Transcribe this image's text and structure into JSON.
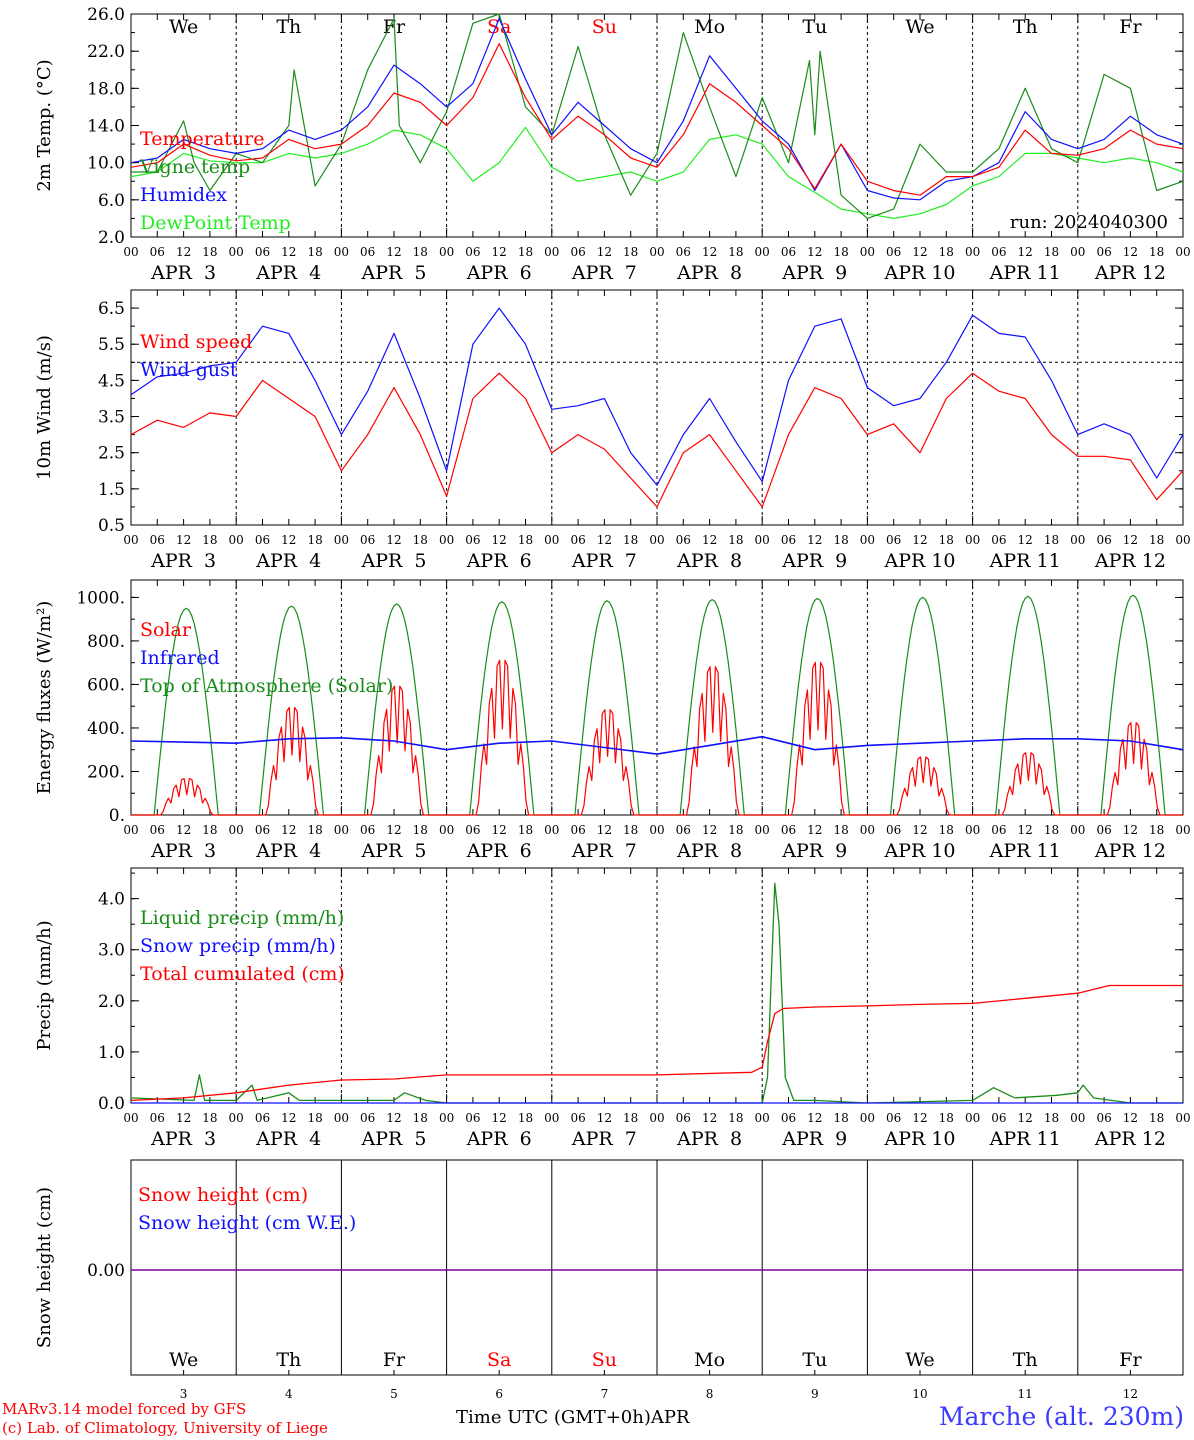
{
  "colors": {
    "red": "#ff0000",
    "green": "#1a8c1a",
    "blue": "#1010ff",
    "lightgreen": "#22ee22",
    "purple": "#8000a0",
    "black": "#000000"
  },
  "days_top": [
    "We",
    "Th",
    "Fr",
    "Sa",
    "Su",
    "Mo",
    "Tu",
    "We",
    "Th",
    "Fr"
  ],
  "weekend_days": [
    "Sa",
    "Su"
  ],
  "day_numbers": [
    "3",
    "4",
    "5",
    "6",
    "7",
    "8",
    "9",
    "10",
    "11",
    "12"
  ],
  "date_labels": [
    "APR  3",
    "APR  4",
    "APR  5",
    "APR  6",
    "APR  7",
    "APR  8",
    "APR  9",
    "APR 10",
    "APR 11",
    "APR 12"
  ],
  "hour_ticks": [
    "00",
    "06",
    "12",
    "18"
  ],
  "end_tick": "00",
  "run_label": "run: 2024040300",
  "footer": {
    "credit1": "MARv3.14 model forced by GFS",
    "credit2": "(c) Lab. of Climatology, University of Liege",
    "xunit": "Time UTC (GMT+0h)",
    "month": "APR",
    "station": "Marche (alt. 230m)"
  },
  "chart_data": [
    {
      "type": "line",
      "ylabel": "2m Temp. (°C)",
      "ylim": [
        2,
        26
      ],
      "yticks": [
        "26.0",
        "22.0",
        "18.0",
        "14.0",
        "10.0",
        "6.0",
        "2.0"
      ],
      "ytick_values": [
        26,
        22,
        18,
        14,
        10,
        6,
        2
      ],
      "x_unit": "days from APR 3 00 UTC",
      "series": [
        {
          "name": "Temperature",
          "color": "red",
          "x": [
            0,
            0.25,
            0.5,
            0.75,
            1,
            1.25,
            1.5,
            1.75,
            2,
            2.25,
            2.5,
            2.75,
            3,
            3.25,
            3.5,
            3.75,
            4,
            4.25,
            4.5,
            4.75,
            5,
            5.25,
            5.5,
            5.75,
            6,
            6.25,
            6.5,
            6.75,
            7,
            7.25,
            7.5,
            7.75,
            8,
            8.25,
            8.5,
            8.75,
            9,
            9.25,
            9.5,
            9.75,
            10
          ],
          "y": [
            9.5,
            10.0,
            12.0,
            10.8,
            10.2,
            10.5,
            12.5,
            11.5,
            12.0,
            14.0,
            17.5,
            16.5,
            14.0,
            17.0,
            22.8,
            17.0,
            12.5,
            15.0,
            13.0,
            10.5,
            9.5,
            13.0,
            18.5,
            16.5,
            14.0,
            11.5,
            7.2,
            12.0,
            8.0,
            7.0,
            6.5,
            8.5,
            8.5,
            9.5,
            13.5,
            11.0,
            10.8,
            11.5,
            13.5,
            12.0,
            11.5
          ]
        },
        {
          "name": "Vigne temp",
          "color": "green",
          "x": [
            0,
            0.25,
            0.5,
            0.6,
            0.75,
            1,
            1.25,
            1.5,
            1.55,
            1.75,
            2,
            2.25,
            2.5,
            2.55,
            2.75,
            3,
            3.25,
            3.5,
            3.75,
            4,
            4.25,
            4.5,
            4.75,
            5,
            5.25,
            5.5,
            5.75,
            6,
            6.25,
            6.45,
            6.5,
            6.55,
            6.75,
            7,
            7.25,
            7.5,
            7.75,
            8,
            8.25,
            8.5,
            8.75,
            9,
            9.25,
            9.5,
            9.75,
            10
          ],
          "y": [
            9.0,
            9.0,
            14.5,
            10.0,
            7.0,
            11.0,
            10.0,
            14.0,
            20.0,
            7.5,
            12.0,
            20.0,
            25.5,
            14.0,
            10.0,
            15.5,
            25.0,
            26.0,
            16.0,
            13.0,
            22.5,
            13.0,
            6.5,
            11.0,
            24.0,
            16.0,
            8.5,
            17.0,
            10.0,
            21.0,
            13.0,
            22.0,
            6.5,
            4.0,
            5.0,
            12.0,
            9.0,
            9.0,
            11.5,
            18.0,
            11.5,
            10.0,
            19.5,
            18.0,
            7.0,
            8.0
          ]
        },
        {
          "name": "Humidex",
          "color": "blue",
          "x": [
            0,
            0.25,
            0.5,
            0.75,
            1,
            1.25,
            1.5,
            1.75,
            2,
            2.25,
            2.5,
            2.75,
            3,
            3.25,
            3.5,
            3.75,
            4,
            4.25,
            4.5,
            4.75,
            5,
            5.25,
            5.5,
            5.75,
            6,
            6.25,
            6.5,
            6.75,
            7,
            7.25,
            7.5,
            7.75,
            8,
            8.25,
            8.5,
            8.75,
            9,
            9.25,
            9.5,
            9.75,
            10
          ],
          "y": [
            10.0,
            10.5,
            12.5,
            11.5,
            11.0,
            11.5,
            13.5,
            12.5,
            13.5,
            16.0,
            20.5,
            18.5,
            16.0,
            18.5,
            25.5,
            19.0,
            13.0,
            16.5,
            14.0,
            11.5,
            10.0,
            14.5,
            21.5,
            18.0,
            14.5,
            12.0,
            7.0,
            12.0,
            7.0,
            6.2,
            6.0,
            8.0,
            8.5,
            10.0,
            15.5,
            12.5,
            11.5,
            12.5,
            15.0,
            13.0,
            12.0
          ]
        },
        {
          "name": "DewPoint Temp",
          "color": "lightgreen",
          "x": [
            0,
            0.25,
            0.5,
            0.75,
            1,
            1.25,
            1.5,
            1.75,
            2,
            2.25,
            2.5,
            2.75,
            3,
            3.25,
            3.5,
            3.75,
            4,
            4.25,
            4.5,
            4.75,
            5,
            5.25,
            5.5,
            5.75,
            6,
            6.25,
            6.5,
            6.75,
            7,
            7.25,
            7.5,
            7.75,
            8,
            8.25,
            8.5,
            8.75,
            9,
            9.25,
            9.5,
            9.75,
            10
          ],
          "y": [
            8.5,
            9.0,
            11.0,
            10.2,
            10.0,
            10.0,
            11.0,
            10.5,
            11.0,
            12.0,
            13.5,
            13.0,
            11.5,
            8.0,
            10.0,
            13.8,
            9.5,
            8.0,
            8.5,
            9.0,
            8.0,
            9.0,
            12.5,
            13.0,
            12.0,
            8.5,
            6.8,
            5.0,
            4.5,
            4.0,
            4.5,
            5.5,
            7.5,
            8.5,
            11.0,
            11.0,
            10.5,
            10.0,
            10.5,
            10.0,
            9.0
          ]
        }
      ]
    },
    {
      "type": "line",
      "ylabel": "10m Wind (m/s)",
      "ylim": [
        0.5,
        7.0
      ],
      "yticks": [
        "6.5",
        "5.5",
        "4.5",
        "3.5",
        "2.5",
        "1.5",
        "0.5"
      ],
      "ytick_values": [
        6.5,
        5.5,
        4.5,
        3.5,
        2.5,
        1.5,
        0.5
      ],
      "reference_line": 5.0,
      "series": [
        {
          "name": "Wind speed",
          "color": "red",
          "x": [
            0,
            0.25,
            0.5,
            0.75,
            1,
            1.25,
            1.5,
            1.75,
            2,
            2.25,
            2.5,
            2.75,
            3,
            3.25,
            3.5,
            3.75,
            4,
            4.25,
            4.5,
            4.75,
            5,
            5.25,
            5.5,
            5.75,
            6,
            6.25,
            6.5,
            6.75,
            7,
            7.25,
            7.5,
            7.75,
            8,
            8.25,
            8.5,
            8.75,
            9,
            9.25,
            9.5,
            9.75,
            10
          ],
          "y": [
            3.0,
            3.4,
            3.2,
            3.6,
            3.5,
            4.5,
            4.0,
            3.5,
            2.0,
            3.0,
            4.3,
            3.0,
            1.3,
            4.0,
            4.7,
            4.0,
            2.5,
            3.0,
            2.6,
            1.8,
            1.0,
            2.5,
            3.0,
            2.0,
            1.0,
            3.0,
            4.3,
            4.0,
            3.0,
            3.3,
            2.5,
            4.0,
            4.7,
            4.2,
            4.0,
            3.0,
            2.4,
            2.4,
            2.3,
            1.2,
            2.0
          ]
        },
        {
          "name": "Wind gust",
          "color": "blue",
          "x": [
            0,
            0.25,
            0.5,
            0.75,
            1,
            1.25,
            1.5,
            1.75,
            2,
            2.25,
            2.5,
            2.75,
            3,
            3.25,
            3.5,
            3.75,
            4,
            4.25,
            4.5,
            4.75,
            5,
            5.25,
            5.5,
            5.75,
            6,
            6.25,
            6.5,
            6.75,
            7,
            7.25,
            7.5,
            7.75,
            8,
            8.25,
            8.5,
            8.75,
            9,
            9.25,
            9.5,
            9.75,
            10
          ],
          "y": [
            4.1,
            4.6,
            4.7,
            4.9,
            5.0,
            6.0,
            5.8,
            4.5,
            3.0,
            4.2,
            5.8,
            4.0,
            2.0,
            5.5,
            6.5,
            5.5,
            3.7,
            3.8,
            4.0,
            2.5,
            1.6,
            3.0,
            4.0,
            2.8,
            1.7,
            4.5,
            6.0,
            6.2,
            4.3,
            3.8,
            4.0,
            5.0,
            6.3,
            5.8,
            5.7,
            4.5,
            3.0,
            3.3,
            3.0,
            1.8,
            3.0
          ]
        }
      ]
    },
    {
      "type": "line",
      "ylabel": "Energy fluxes (W/m²)",
      "ylim": [
        0,
        1080
      ],
      "yticks": [
        "1000.",
        "800.",
        "600.",
        "400.",
        "200.",
        "0."
      ],
      "ytick_values": [
        1000,
        800,
        600,
        400,
        200,
        0
      ],
      "series": [
        {
          "name": "Solar",
          "color": "red",
          "daily_peak": [
            170,
            500,
            600,
            720,
            490,
            690,
            710,
            270,
            290,
            430
          ]
        },
        {
          "name": "Infrared",
          "color": "blue",
          "x": [
            0,
            0.5,
            1,
            1.5,
            2,
            2.5,
            3,
            3.5,
            4,
            4.5,
            5,
            5.5,
            6,
            6.5,
            7,
            7.5,
            8,
            8.5,
            9,
            9.5,
            10
          ],
          "y": [
            340,
            335,
            330,
            350,
            355,
            340,
            300,
            330,
            340,
            310,
            280,
            320,
            360,
            300,
            320,
            330,
            340,
            350,
            350,
            340,
            300
          ]
        },
        {
          "name": "Top of Atmosphere (Solar)",
          "color": "green",
          "daily_peak": [
            950,
            960,
            970,
            980,
            985,
            990,
            995,
            1000,
            1005,
            1010
          ]
        }
      ]
    },
    {
      "type": "line",
      "ylabel": "Precip (mm/h)",
      "ylim": [
        0,
        4.6
      ],
      "yticks": [
        "4.0",
        "3.0",
        "2.0",
        "1.0",
        "0.0"
      ],
      "ytick_values": [
        4,
        3,
        2,
        1,
        0
      ],
      "series": [
        {
          "name": "Liquid precip (mm/h)",
          "color": "green",
          "x": [
            0,
            0.6,
            0.65,
            0.7,
            1.0,
            1.15,
            1.2,
            1.5,
            1.6,
            2.0,
            2.5,
            2.6,
            2.8,
            3.0,
            6.0,
            6.05,
            6.12,
            6.16,
            6.22,
            6.3,
            6.5,
            7.0,
            8.0,
            8.2,
            8.4,
            8.8,
            9.0,
            9.05,
            9.15,
            9.5,
            10
          ],
          "y": [
            0.1,
            0.05,
            0.55,
            0.05,
            0.05,
            0.35,
            0.05,
            0.2,
            0.05,
            0.05,
            0.05,
            0.2,
            0.05,
            0.0,
            0.0,
            0.5,
            4.3,
            3.5,
            0.5,
            0.05,
            0.05,
            0.0,
            0.05,
            0.3,
            0.1,
            0.15,
            0.2,
            0.35,
            0.1,
            0.0,
            0.0
          ]
        },
        {
          "name": "Snow precip (mm/h)",
          "color": "blue",
          "x": [
            0,
            10
          ],
          "y": [
            0,
            0
          ]
        },
        {
          "name": "Total cumulated (cm)",
          "color": "red",
          "x": [
            0,
            0.5,
            1,
            1.5,
            2,
            2.5,
            3,
            4,
            5,
            5.9,
            6.0,
            6.05,
            6.12,
            6.2,
            6.5,
            7,
            7.5,
            8,
            8.5,
            9,
            9.3,
            10
          ],
          "y": [
            0.05,
            0.1,
            0.2,
            0.35,
            0.45,
            0.47,
            0.55,
            0.55,
            0.55,
            0.6,
            0.7,
            1.2,
            1.75,
            1.85,
            1.88,
            1.9,
            1.93,
            1.95,
            2.05,
            2.15,
            2.3,
            2.3
          ]
        }
      ]
    },
    {
      "type": "line",
      "ylabel": "Snow height (cm)",
      "yticks": [
        "0.00"
      ],
      "series": [
        {
          "name": "Snow height (cm)",
          "color": "red",
          "x": [
            0,
            10
          ],
          "y": [
            0,
            0
          ]
        },
        {
          "name": "Snow height (cm W.E.)",
          "color": "blue",
          "x": [
            0,
            10
          ],
          "y": [
            0,
            0
          ]
        }
      ]
    }
  ]
}
